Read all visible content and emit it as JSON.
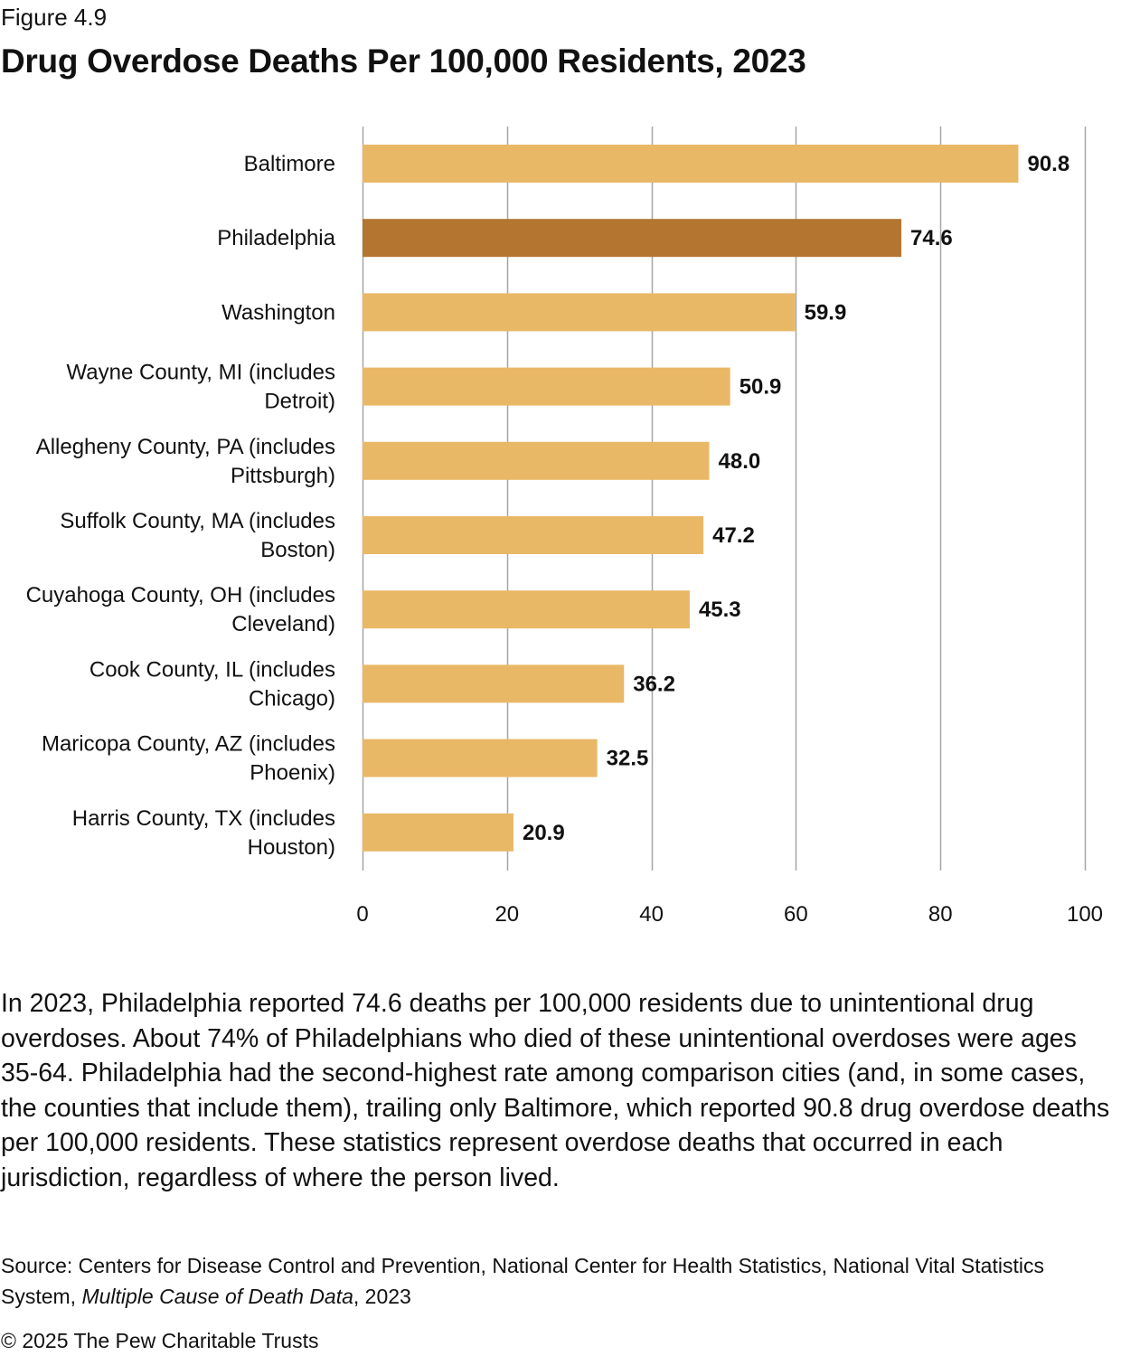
{
  "header": {
    "figure_label": "Figure 4.9",
    "title": "Drug Overdose Deaths Per 100,000 Residents, 2023"
  },
  "chart_data": {
    "type": "bar",
    "orientation": "horizontal",
    "title": "Drug Overdose Deaths Per 100,000 Residents, 2023",
    "xlabel": "",
    "ylabel": "",
    "xlim": [
      0,
      100
    ],
    "x_ticks": [
      0,
      20,
      40,
      60,
      80,
      100
    ],
    "x_tick_labels": [
      "0",
      "20",
      "40",
      "60",
      "80",
      "100"
    ],
    "grid": true,
    "categories": [
      [
        "Baltimore"
      ],
      [
        "Philadelphia"
      ],
      [
        "Washington"
      ],
      [
        "Wayne County, MI (includes",
        "Detroit)"
      ],
      [
        "Allegheny County, PA (includes",
        "Pittsburgh)"
      ],
      [
        "Suffolk County, MA (includes",
        "Boston)"
      ],
      [
        "Cuyahoga County, OH (includes",
        "Cleveland)"
      ],
      [
        "Cook County, IL (includes",
        "Chicago)"
      ],
      [
        "Maricopa County, AZ (includes",
        "Phoenix)"
      ],
      [
        "Harris County, TX (includes",
        "Houston)"
      ]
    ],
    "values": [
      90.8,
      74.6,
      59.9,
      50.9,
      48.0,
      47.2,
      45.3,
      36.2,
      32.5,
      20.9
    ],
    "value_labels": [
      "90.8",
      "74.6",
      "59.9",
      "50.9",
      "48.0",
      "47.2",
      "45.3",
      "36.2",
      "32.5",
      "20.9"
    ],
    "highlight_index": 1,
    "colors": {
      "bar": "#e9b866",
      "highlight": "#b3752f",
      "grid": "#a6a6a6"
    }
  },
  "body": {
    "paragraph": "In 2023, Philadelphia reported 74.6 deaths per 100,000 residents due to unintentional drug overdoses. About 74% of Philadelphians who died of these unintentional overdoses were ages 35-64. Philadelphia had the second-highest rate among comparison cities (and, in some cases, the counties that include them), trailing only Baltimore, which reported 90.8 drug overdose deaths per 100,000 residents. These statistics represent overdose deaths that occurred in each jurisdiction, regardless of where the person lived."
  },
  "footer": {
    "source_prefix": "Source: Centers for Disease Control and Prevention, National Center for Health Statistics, National Vital Statistics System, ",
    "source_italic": "Multiple Cause of Death Data",
    "source_suffix": ", 2023",
    "copyright": "© 2025 The Pew Charitable Trusts"
  }
}
